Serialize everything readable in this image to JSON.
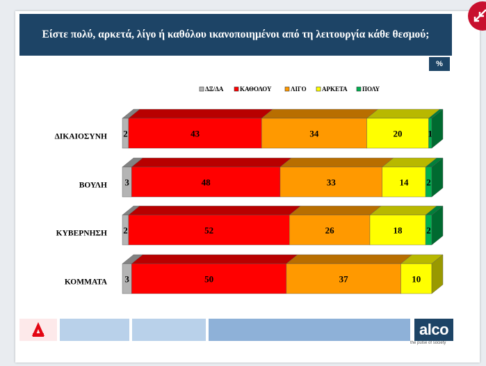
{
  "title": "Είστε πολύ, αρκετά, λίγο ή καθόλου ικανοποιημένοι από τη λειτουργία κάθε θεσμού;",
  "unit_badge": "%",
  "brand": {
    "name": "alco",
    "tagline": "the pulse of society"
  },
  "colors": {
    "title_bg": "#1d4466",
    "corner_icon": "#c8102e"
  },
  "icons": {
    "corner": "collapse-arrow-icon",
    "left_logo": "alpha-tv-logo-icon"
  },
  "chart_data": {
    "type": "bar",
    "orientation": "horizontal",
    "stacked": true,
    "categories": [
      "ΔΙΚΑΙΟΣΥΝΗ",
      "ΒΟΥΛΗ",
      "ΚΥΒΕΡΝΗΣΗ",
      "ΚΟΜΜΑΤΑ"
    ],
    "series": [
      {
        "name": "ΔΞ/ΔΑ",
        "color": "#b4b4b4",
        "values": [
          2,
          3,
          2,
          3
        ]
      },
      {
        "name": "ΚΑΘΟΛΟΥ",
        "color": "#ff0000",
        "values": [
          43,
          48,
          52,
          50
        ]
      },
      {
        "name": "ΛΙΓΟ",
        "color": "#ff9900",
        "values": [
          34,
          33,
          26,
          37
        ]
      },
      {
        "name": "ΑΡΚΕΤΑ",
        "color": "#ffff00",
        "values": [
          20,
          14,
          18,
          10
        ]
      },
      {
        "name": "ΠΟΛΥ",
        "color": "#00b050",
        "values": [
          1,
          2,
          2,
          0
        ]
      }
    ],
    "legend_position": "top-center",
    "grid": false,
    "xlim": [
      0,
      100
    ]
  }
}
